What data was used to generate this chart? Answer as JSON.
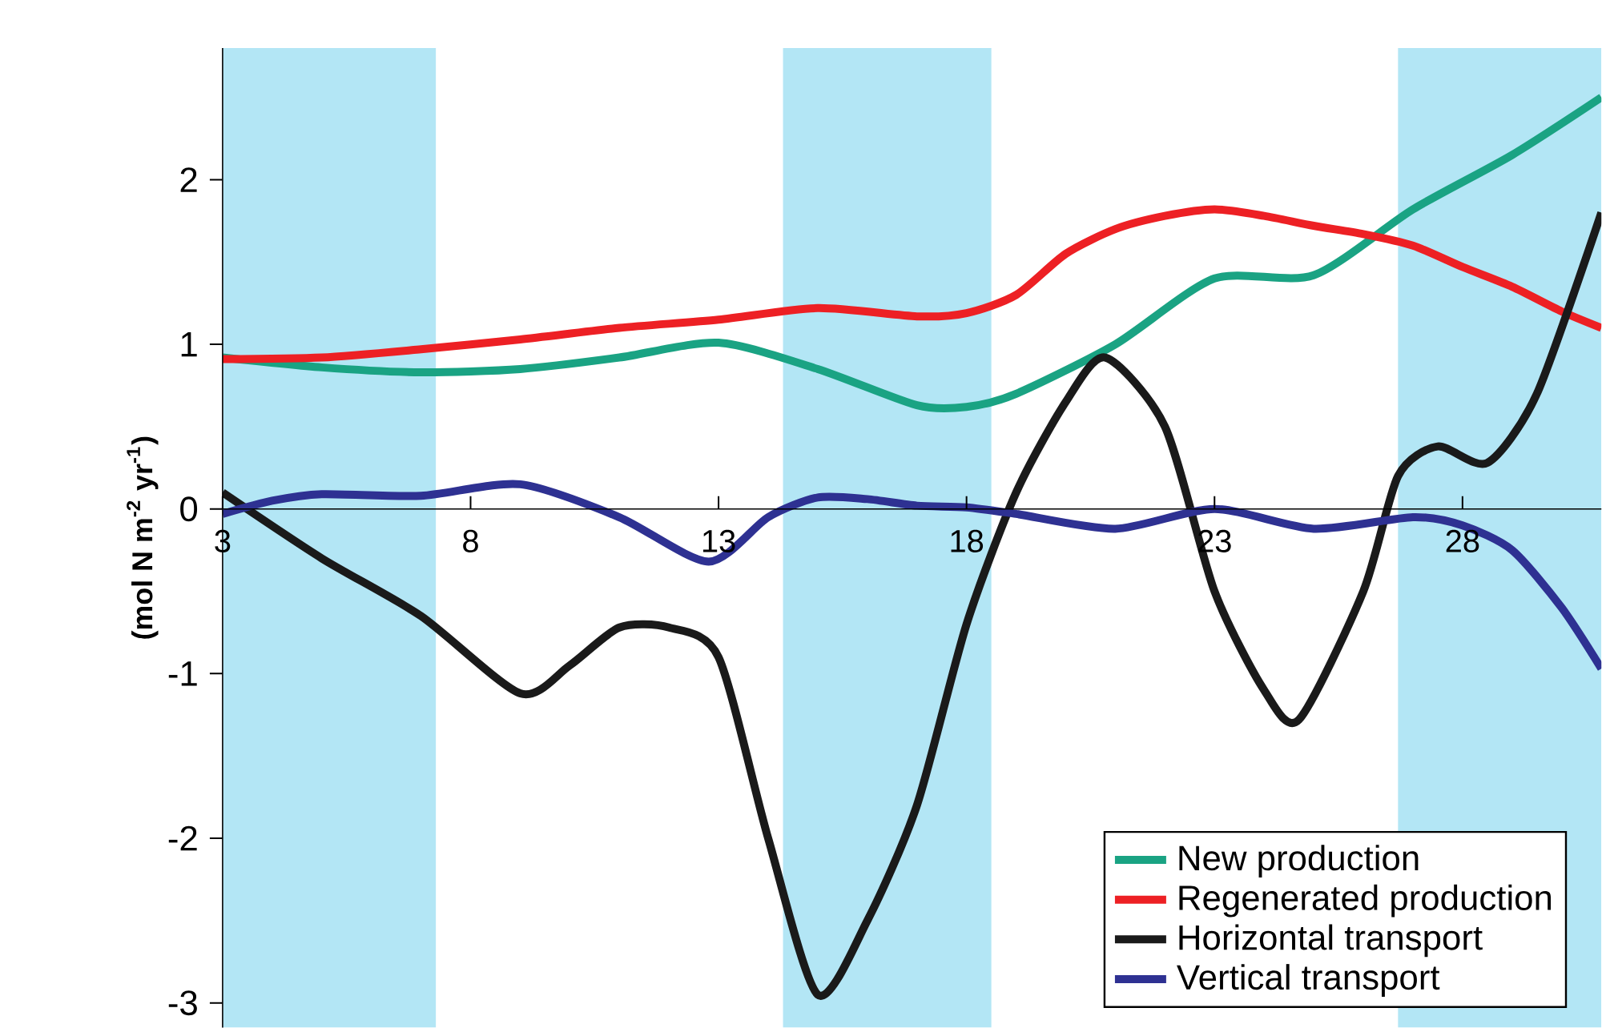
{
  "chart_data": {
    "type": "line",
    "ylabel": "(mol N m$^{-2}$ yr$^{-1}$)",
    "xlim": [
      3,
      30.8
    ],
    "ylim": [
      -3.15,
      2.8
    ],
    "xticks": [
      3,
      8,
      13,
      18,
      23,
      28
    ],
    "yticks": [
      -3,
      -2,
      -1,
      0,
      1,
      2
    ],
    "legend": "bottom right",
    "marker": "none",
    "line_style": "solid",
    "bands": [
      {
        "axis": "x",
        "from": 3,
        "to": 7.3,
        "color": "#b3e6f5"
      },
      {
        "axis": "x",
        "from": 14.3,
        "to": 18.5,
        "color": "#b3e6f5"
      },
      {
        "axis": "x",
        "from": 26.7,
        "to": 30.8,
        "color": "#b3e6f5"
      }
    ],
    "series": [
      {
        "name": "New production",
        "color": "#1aa383",
        "x": [
          3,
          5,
          7,
          9,
          11,
          13,
          15,
          17,
          18,
          19,
          21,
          23,
          25,
          27,
          29,
          30.8
        ],
        "values": [
          0.92,
          0.86,
          0.83,
          0.85,
          0.92,
          1.01,
          0.85,
          0.63,
          0.62,
          0.7,
          1.0,
          1.4,
          1.42,
          1.82,
          2.15,
          2.5
        ]
      },
      {
        "name": "Regenerated production",
        "color": "#ed2024",
        "x": [
          3,
          5,
          7,
          9,
          11,
          13,
          15,
          17,
          18,
          19,
          20,
          21,
          22,
          23,
          24,
          25,
          26,
          27,
          28,
          29,
          30,
          30.8
        ],
        "values": [
          0.91,
          0.92,
          0.97,
          1.03,
          1.1,
          1.15,
          1.22,
          1.17,
          1.19,
          1.3,
          1.55,
          1.7,
          1.78,
          1.82,
          1.78,
          1.72,
          1.67,
          1.6,
          1.47,
          1.35,
          1.2,
          1.1
        ]
      },
      {
        "name": "Horizontal transport",
        "color": "#1a1a1a",
        "x": [
          3,
          5,
          7,
          9,
          10,
          11,
          12,
          13,
          14,
          15,
          16,
          17,
          18,
          19,
          20,
          20.8,
          22,
          23,
          24,
          24.7,
          26,
          26.7,
          27.5,
          28.5,
          29.5,
          30.8
        ],
        "values": [
          0.1,
          -0.3,
          -0.65,
          -1.12,
          -0.95,
          -0.72,
          -0.72,
          -0.9,
          -2.0,
          -2.95,
          -2.5,
          -1.8,
          -0.7,
          0.1,
          0.65,
          0.92,
          0.5,
          -0.5,
          -1.1,
          -1.28,
          -0.5,
          0.2,
          0.38,
          0.28,
          0.7,
          1.8
        ]
      },
      {
        "name": "Vertical transport",
        "color": "#2e3192",
        "x": [
          3,
          4,
          5,
          7,
          9,
          11,
          12.8,
          14,
          15,
          16,
          17,
          18,
          19,
          21,
          23,
          25,
          27,
          28,
          29,
          30,
          30.8
        ],
        "values": [
          -0.03,
          0.05,
          0.09,
          0.08,
          0.15,
          -0.05,
          -0.32,
          -0.05,
          0.07,
          0.06,
          0.02,
          0.01,
          -0.03,
          -0.12,
          0.0,
          -0.12,
          -0.05,
          -0.1,
          -0.25,
          -0.6,
          -0.97
        ]
      }
    ]
  }
}
